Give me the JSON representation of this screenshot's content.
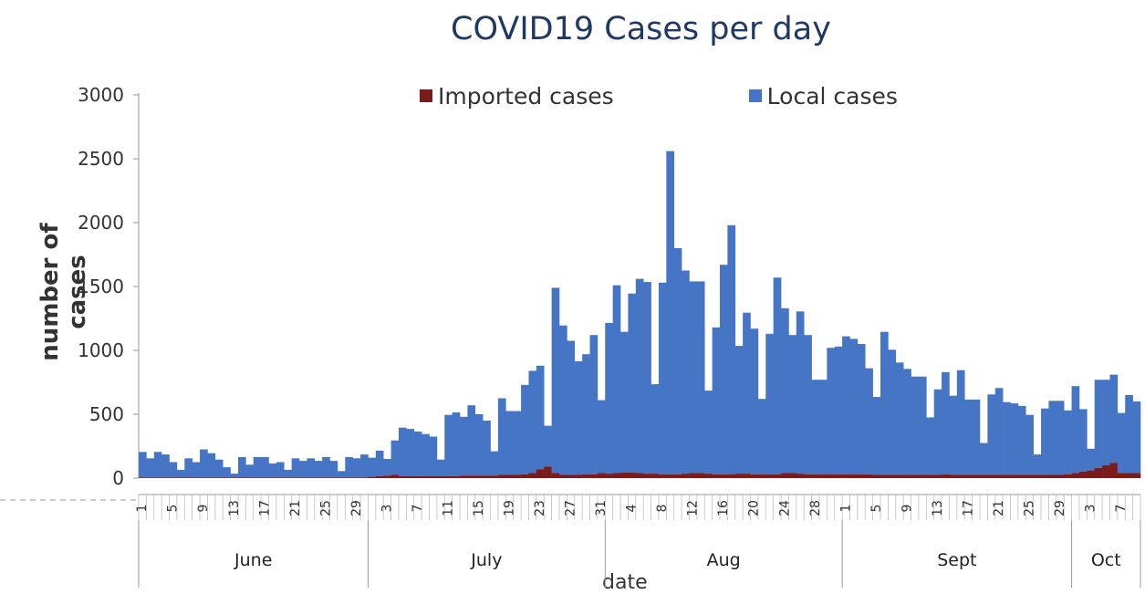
{
  "chart_data": {
    "type": "bar",
    "title": "COVID19 Cases per day",
    "xlabel": "date",
    "ylabel": "number of cases",
    "ylim": [
      0,
      3000
    ],
    "yticks": [
      0,
      500,
      1000,
      1500,
      2000,
      2500,
      3000
    ],
    "grid": false,
    "stacked": true,
    "legend_position": "top",
    "x_day_labels": [
      "1",
      "5",
      "9",
      "13",
      "17",
      "21",
      "25",
      "29",
      "3",
      "7",
      "11",
      "15",
      "19",
      "23",
      "27",
      "31",
      "4",
      "8",
      "12",
      "16",
      "20",
      "24",
      "28",
      "1",
      "5",
      "9",
      "13",
      "17",
      "21",
      "25",
      "29",
      "3",
      "7"
    ],
    "months": [
      {
        "label": "June",
        "days": 30
      },
      {
        "label": "July",
        "days": 31
      },
      {
        "label": "Aug",
        "days": 31
      },
      {
        "label": "Sept",
        "days": 30
      },
      {
        "label": "Oct",
        "days": 9
      }
    ],
    "series": [
      {
        "name": "Imported cases",
        "color": "#7b1c1c",
        "values": [
          5,
          5,
          5,
          5,
          5,
          5,
          5,
          5,
          5,
          5,
          5,
          5,
          5,
          5,
          5,
          5,
          5,
          5,
          5,
          5,
          5,
          5,
          5,
          5,
          5,
          5,
          5,
          5,
          5,
          5,
          10,
          15,
          20,
          25,
          15,
          15,
          15,
          15,
          15,
          15,
          15,
          15,
          20,
          20,
          20,
          20,
          20,
          25,
          25,
          25,
          30,
          40,
          70,
          90,
          40,
          25,
          25,
          25,
          30,
          30,
          40,
          35,
          40,
          45,
          45,
          40,
          35,
          35,
          30,
          30,
          30,
          35,
          40,
          40,
          35,
          30,
          30,
          30,
          35,
          35,
          30,
          30,
          30,
          30,
          40,
          40,
          35,
          30,
          30,
          30,
          30,
          30,
          30,
          30,
          30,
          30,
          25,
          25,
          25,
          25,
          25,
          25,
          25,
          25,
          25,
          30,
          25,
          25,
          25,
          25,
          25,
          25,
          25,
          25,
          25,
          25,
          25,
          25,
          25,
          25,
          25,
          30,
          40,
          50,
          60,
          80,
          100,
          120,
          40,
          40,
          40
        ]
      },
      {
        "name": "Local cases",
        "color": "#4575c4",
        "values": [
          200,
          150,
          200,
          180,
          120,
          60,
          150,
          120,
          220,
          190,
          140,
          80,
          30,
          160,
          100,
          160,
          160,
          110,
          120,
          60,
          150,
          130,
          150,
          130,
          160,
          130,
          50,
          160,
          150,
          180,
          150,
          200,
          130,
          270,
          380,
          370,
          350,
          330,
          310,
          130,
          480,
          500,
          460,
          550,
          480,
          430,
          190,
          600,
          500,
          500,
          700,
          800,
          810,
          320,
          1450,
          1170,
          1050,
          890,
          940,
          1090,
          570,
          1180,
          1470,
          1100,
          1400,
          1520,
          1500,
          700,
          1500,
          2530,
          1770,
          1590,
          1500,
          1500,
          650,
          1150,
          1640,
          1950,
          1000,
          1260,
          1140,
          590,
          1100,
          1540,
          1290,
          1080,
          1270,
          1090,
          740,
          740,
          990,
          1000,
          1080,
          1060,
          1020,
          830,
          610,
          1120,
          980,
          880,
          830,
          770,
          770,
          450,
          670,
          800,
          620,
          820,
          590,
          590,
          250,
          630,
          680,
          570,
          560,
          540,
          470,
          160,
          520,
          580,
          580,
          500,
          680,
          490,
          170,
          690,
          670,
          690,
          470,
          610,
          560,
          620
        ]
      }
    ]
  }
}
